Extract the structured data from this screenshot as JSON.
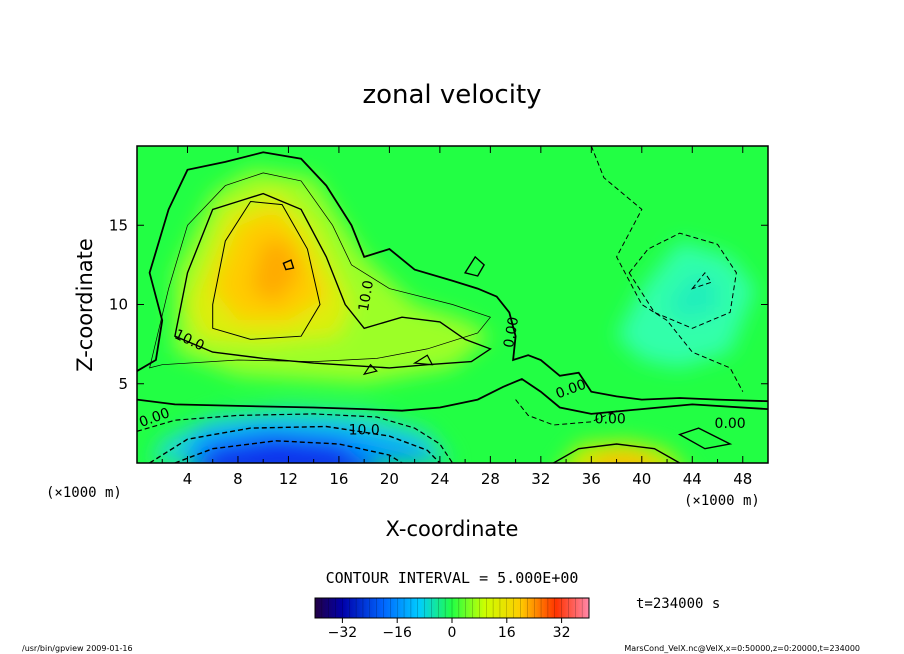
{
  "chart_data": {
    "type": "heatmap",
    "title": "zonal velocity",
    "xlabel": "X-coordinate",
    "ylabel": "Z-coordinate",
    "x_unit": "(×1000 m)",
    "z_unit": "(×1000 m)",
    "xlim": [
      0,
      50
    ],
    "ylim": [
      0,
      20
    ],
    "x_ticks": [
      4,
      8,
      12,
      16,
      20,
      24,
      28,
      32,
      36,
      40,
      44,
      48
    ],
    "y_ticks": [
      5,
      10,
      15
    ],
    "contour_interval_text": "CONTOUR INTERVAL = 5.000E+00",
    "contour_interval": 5,
    "colorbar": {
      "ticks": [
        -32,
        -16,
        0,
        16,
        32
      ],
      "range": [
        -40,
        40
      ]
    },
    "contour_labels": [
      "10.0",
      "10.0",
      "10.0",
      "0.00",
      "0.00",
      "0.00",
      "0.00",
      "0.00"
    ],
    "features": [
      {
        "name": "positive jet core",
        "x": 11,
        "z": 12,
        "value": 22
      },
      {
        "name": "negative near-surface core",
        "x": 12,
        "z": 0.5,
        "value": -30
      },
      {
        "name": "weak negative region",
        "x": 44,
        "z": 11,
        "value": -8
      },
      {
        "name": "positive near-surface patch",
        "x": 38,
        "z": 0.3,
        "value": 20
      }
    ],
    "time_text": "t=234000 s"
  },
  "footer": {
    "left": "/usr/bin/gpview   2009-01-16",
    "right": "MarsCond_VelX.nc@VelX,x=0:50000,z=0:20000,t=234000"
  },
  "colors": {
    "background_field": "#22ff44",
    "positive": "#ffbb00",
    "negative": "#0033ff"
  }
}
